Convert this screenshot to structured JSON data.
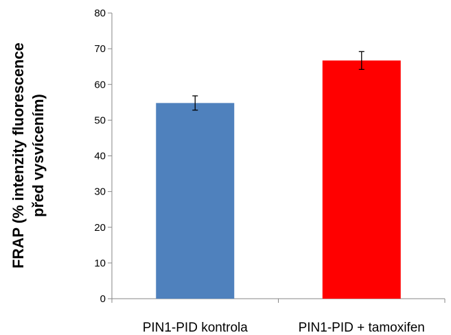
{
  "chart_data": {
    "type": "bar",
    "categories": [
      "PIN1-PID kontrola",
      "PIN1-PID + tamoxifen"
    ],
    "values": [
      54.8,
      66.7
    ],
    "errors": [
      2.0,
      2.5
    ],
    "ylabel_lines": [
      "FRAP (% intenzity fluorescence",
      "před vysvícením)"
    ],
    "ylim": [
      0,
      80
    ],
    "yticks": [
      0,
      10,
      20,
      30,
      40,
      50,
      60,
      70,
      80
    ],
    "colors": [
      "#4f81bd",
      "#ff0000"
    ],
    "grid": false,
    "legend": "none"
  }
}
